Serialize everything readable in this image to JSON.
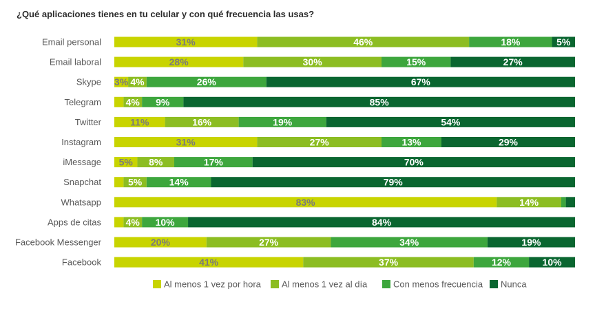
{
  "chart_data": {
    "type": "bar",
    "orientation": "horizontal",
    "stacked": true,
    "title": "¿Qué aplicaciones tienes en tu celular y con qué frecuencia las usas?",
    "categories": [
      "Email personal",
      "Email laboral",
      "Skype",
      "Telegram",
      "Twitter",
      "Instagram",
      "iMessage",
      "Snapchat",
      "Whatsapp",
      "Apps de citas",
      "Facebook Messenger",
      "Facebook"
    ],
    "series": [
      {
        "name": "Al menos 1 vez por hora",
        "color": "#c8d400",
        "label_color": "#7a7a7a",
        "values": [
          31,
          28,
          3,
          2,
          11,
          31,
          5,
          2,
          83,
          2,
          20,
          41
        ],
        "labels": [
          "31%",
          "28%",
          "3%",
          "",
          "11%",
          "31%",
          "5%",
          "",
          "83%",
          "",
          "20%",
          "41%"
        ]
      },
      {
        "name": "Al menos 1 vez al día",
        "color": "#8cbd22",
        "label_color": "#ffffff",
        "values": [
          46,
          30,
          4,
          4,
          16,
          27,
          8,
          5,
          14,
          4,
          27,
          37
        ],
        "labels": [
          "46%",
          "30%",
          "4%",
          "4%",
          "16%",
          "27%",
          "8%",
          "5%",
          "14%",
          "4%",
          "27%",
          "37%"
        ]
      },
      {
        "name": "Con menos frecuencia",
        "color": "#3da63d",
        "label_color": "#ffffff",
        "values": [
          18,
          15,
          26,
          9,
          19,
          13,
          17,
          14,
          1,
          10,
          34,
          12
        ],
        "labels": [
          "18%",
          "15%",
          "26%",
          "9%",
          "19%",
          "13%",
          "17%",
          "14%",
          "",
          "10%",
          "34%",
          "12%"
        ]
      },
      {
        "name": "Nunca",
        "color": "#0a6630",
        "label_color": "#ffffff",
        "values": [
          5,
          27,
          67,
          85,
          54,
          29,
          70,
          79,
          2,
          84,
          19,
          10
        ],
        "labels": [
          "5%",
          "27%",
          "67%",
          "85%",
          "54%",
          "29%",
          "70%",
          "79%",
          "",
          "84%",
          "19%",
          "10%"
        ]
      }
    ],
    "xlim": [
      0,
      100
    ],
    "grid": false,
    "legend_position": "bottom"
  }
}
